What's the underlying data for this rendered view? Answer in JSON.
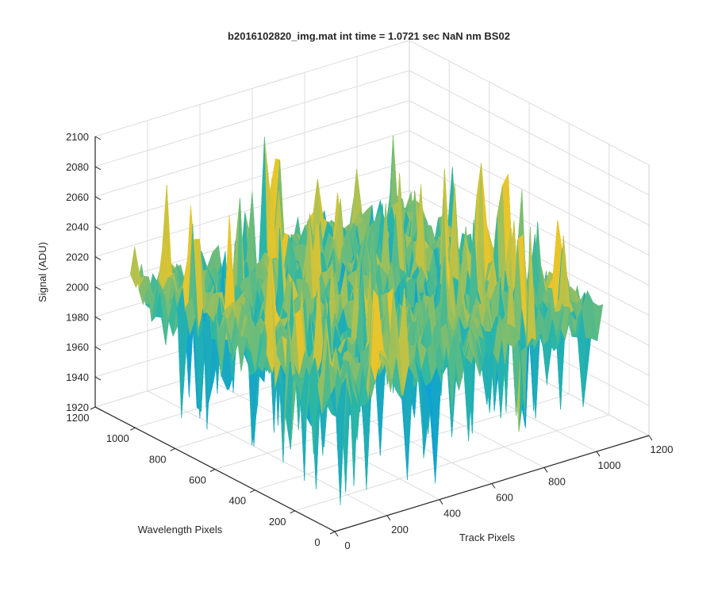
{
  "chart_data": {
    "type": "surface",
    "title": "b2016102820_img.mat int time = 1.0721 sec  NaN nm BS02",
    "xlabel": "Track Pixels",
    "ylabel": "Wavelength Pixels",
    "zlabel": "Signal (ADU)",
    "x_ticks": [
      0,
      200,
      400,
      600,
      800,
      1000,
      1200
    ],
    "y_ticks": [
      0,
      200,
      400,
      600,
      800,
      1000,
      1200
    ],
    "z_ticks": [
      1920,
      1940,
      1960,
      1980,
      2000,
      2020,
      2040,
      2060,
      2080,
      2100
    ],
    "x_tick_labels": [
      "0",
      "200",
      "400",
      "600",
      "800",
      "1000",
      "1200"
    ],
    "y_tick_labels": [
      "0",
      "200",
      "400",
      "600",
      "800",
      "1000",
      "1200"
    ],
    "z_tick_labels": [
      "1920",
      "1940",
      "1960",
      "1980",
      "2000",
      "2020",
      "2040",
      "2060",
      "2080",
      "2100"
    ],
    "xlim": [
      0,
      1200
    ],
    "ylim": [
      0,
      1200
    ],
    "zlim": [
      1920,
      2100
    ],
    "grid": true,
    "colormap": "parula",
    "signal_mean": 2010,
    "signal_range": [
      1925,
      2090
    ],
    "data_extent": [
      0,
      1024
    ],
    "grid_resolution": 48,
    "noise_seed": 20161028,
    "colors": {
      "axis": "#262626",
      "grid": "#dcdcdc",
      "low": "#0c9fd6",
      "mid": "#2cb7a4",
      "high": "#e8c52b"
    }
  }
}
